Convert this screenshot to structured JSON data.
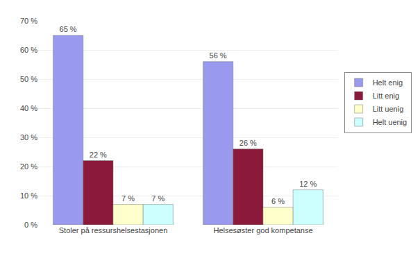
{
  "chart_data": {
    "type": "bar",
    "categories": [
      "Stoler på ressurshelsestasjonen",
      "Helsesøster god kompetanse"
    ],
    "series": [
      {
        "name": "Helt enig",
        "color": "#9999ee",
        "values": [
          65,
          56
        ],
        "value_labels": [
          "65 %",
          "56 %"
        ]
      },
      {
        "name": "Litt enig",
        "color": "#8b1a3a",
        "values": [
          22,
          26
        ],
        "value_labels": [
          "22 %",
          "26 %"
        ]
      },
      {
        "name": "Litt uenig",
        "color": "#ffffcc",
        "values": [
          7,
          6
        ],
        "value_labels": [
          "7 %",
          "6 %"
        ]
      },
      {
        "name": "Helt uenig",
        "color": "#ccffff",
        "values": [
          7,
          12
        ],
        "value_labels": [
          "7 %",
          "12 %"
        ]
      }
    ],
    "ylim": [
      0,
      70
    ],
    "yticks": [
      {
        "value": 0,
        "label": "0 %"
      },
      {
        "value": 10,
        "label": "10 %"
      },
      {
        "value": 20,
        "label": "20 %"
      },
      {
        "value": 30,
        "label": "30 %"
      },
      {
        "value": 40,
        "label": "40 %"
      },
      {
        "value": 50,
        "label": "50 %"
      },
      {
        "value": 60,
        "label": "60 %"
      },
      {
        "value": 70,
        "label": "70 %"
      }
    ],
    "grid": true,
    "legend": "right",
    "data_labels": true
  }
}
